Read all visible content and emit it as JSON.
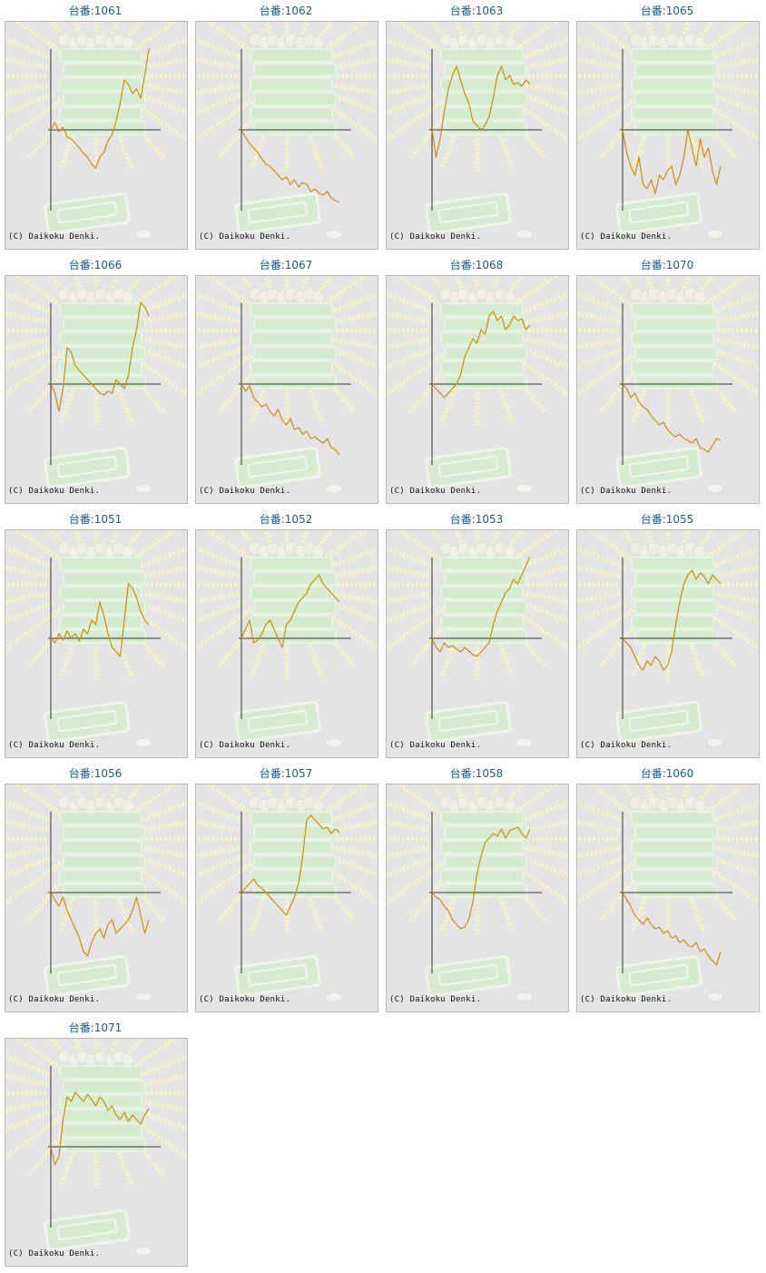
{
  "colors": {
    "background": "#e4e4e4",
    "title": "#1a5c8a",
    "line": "#c88f0c",
    "axis": "#333333",
    "border": "#b8b8b8"
  },
  "label_prefix": "台番:",
  "copyright": "(C) Daikoku Denki.",
  "machines": [
    {
      "number": "1061",
      "series": [
        0,
        8,
        -2,
        3,
        -8,
        -10,
        -15,
        -20,
        -26,
        -30,
        -38,
        -42,
        -30,
        -25,
        -12,
        -5,
        10,
        30,
        55,
        50,
        40,
        45,
        35,
        60,
        90
      ]
    },
    {
      "number": "1062",
      "series": [
        0,
        -8,
        -15,
        -20,
        -25,
        -32,
        -38,
        -40,
        -45,
        -50,
        -55,
        -52,
        -60,
        -55,
        -63,
        -58,
        -60,
        -68,
        -65,
        -70,
        -72,
        -68,
        -75,
        -78,
        -80
      ]
    },
    {
      "number": "1063",
      "series": [
        0,
        -30,
        -10,
        20,
        45,
        60,
        70,
        55,
        40,
        30,
        10,
        5,
        0,
        5,
        15,
        35,
        60,
        70,
        55,
        60,
        50,
        52,
        48,
        55,
        50
      ]
    },
    {
      "number": "1065",
      "series": [
        0,
        -25,
        -40,
        -50,
        -30,
        -60,
        -65,
        -55,
        -70,
        -50,
        -55,
        -45,
        -40,
        -60,
        -50,
        -30,
        0,
        -20,
        -40,
        -10,
        -30,
        -20,
        -45,
        -60,
        -40
      ]
    },
    {
      "number": "1066",
      "series": [
        0,
        -10,
        -30,
        -5,
        40,
        35,
        20,
        15,
        10,
        5,
        0,
        -5,
        -10,
        -12,
        -8,
        -10,
        5,
        0,
        -5,
        10,
        40,
        60,
        90,
        85,
        75
      ]
    },
    {
      "number": "1067",
      "series": [
        0,
        -8,
        -2,
        -15,
        -20,
        -25,
        -22,
        -30,
        -35,
        -28,
        -40,
        -45,
        -38,
        -50,
        -48,
        -55,
        -52,
        -60,
        -58,
        -62,
        -65,
        -60,
        -70,
        -72,
        -78
      ]
    },
    {
      "number": "1068",
      "series": [
        0,
        -5,
        -10,
        -15,
        -10,
        -5,
        0,
        10,
        30,
        40,
        50,
        45,
        60,
        55,
        75,
        80,
        70,
        75,
        60,
        65,
        75,
        70,
        72,
        60,
        65
      ]
    },
    {
      "number": "1070",
      "series": [
        0,
        -5,
        -15,
        -10,
        -20,
        -25,
        -28,
        -35,
        -40,
        -45,
        -42,
        -50,
        -55,
        -58,
        -55,
        -60,
        -62,
        -65,
        -60,
        -70,
        -72,
        -75,
        -68,
        -60,
        -62
      ]
    },
    {
      "number": "1051",
      "series": [
        0,
        -5,
        5,
        -2,
        8,
        0,
        5,
        -3,
        10,
        5,
        20,
        15,
        40,
        25,
        5,
        -10,
        -15,
        -20,
        20,
        60,
        55,
        45,
        30,
        20,
        15
      ]
    },
    {
      "number": "1052",
      "series": [
        0,
        10,
        20,
        -5,
        -2,
        5,
        15,
        20,
        10,
        0,
        -10,
        15,
        20,
        30,
        40,
        45,
        50,
        60,
        65,
        70,
        60,
        55,
        50,
        45,
        40
      ]
    },
    {
      "number": "1053",
      "series": [
        0,
        -10,
        -15,
        -5,
        -10,
        -8,
        -12,
        -15,
        -10,
        -14,
        -18,
        -20,
        -15,
        -10,
        -5,
        15,
        30,
        40,
        50,
        55,
        65,
        60,
        70,
        80,
        90
      ]
    },
    {
      "number": "1055",
      "series": [
        0,
        -5,
        -10,
        -20,
        -30,
        -35,
        -25,
        -30,
        -20,
        -25,
        -35,
        -30,
        -15,
        15,
        40,
        60,
        70,
        75,
        65,
        72,
        68,
        60,
        70,
        65,
        60
      ]
    },
    {
      "number": "1056",
      "series": [
        0,
        -8,
        -15,
        -5,
        -20,
        -30,
        -40,
        -50,
        -65,
        -70,
        -55,
        -45,
        -40,
        -50,
        -35,
        -30,
        -45,
        -40,
        -35,
        -30,
        -20,
        -5,
        -25,
        -45,
        -30
      ]
    },
    {
      "number": "1057",
      "series": [
        0,
        5,
        10,
        15,
        8,
        5,
        0,
        -5,
        -10,
        -15,
        -20,
        -25,
        -15,
        -5,
        10,
        40,
        80,
        85,
        80,
        75,
        70,
        72,
        65,
        70,
        66
      ]
    },
    {
      "number": "1058",
      "series": [
        0,
        -5,
        -8,
        -15,
        -20,
        -30,
        -35,
        -40,
        -38,
        -30,
        -10,
        20,
        40,
        55,
        60,
        65,
        62,
        70,
        60,
        68,
        70,
        72,
        65,
        60,
        70
      ]
    },
    {
      "number": "1060",
      "series": [
        0,
        -8,
        -15,
        -25,
        -30,
        -35,
        -28,
        -35,
        -40,
        -38,
        -45,
        -42,
        -50,
        -48,
        -55,
        -52,
        -58,
        -60,
        -55,
        -65,
        -62,
        -70,
        -75,
        -80,
        -65
      ]
    },
    {
      "number": "1071",
      "series": [
        0,
        -20,
        -10,
        30,
        55,
        50,
        60,
        55,
        50,
        58,
        52,
        45,
        55,
        50,
        40,
        45,
        35,
        30,
        38,
        28,
        35,
        30,
        25,
        35,
        42
      ]
    }
  ]
}
